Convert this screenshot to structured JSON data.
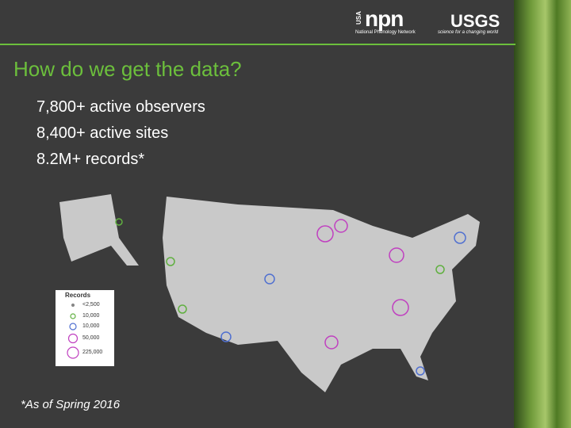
{
  "header": {
    "usa": "USA",
    "npn": "npn",
    "npn_name": "National Phenology Network",
    "usgs": "USGS",
    "usgs_tagline": "science for a changing world"
  },
  "title": "How do we get the data?",
  "bullets": [
    "7,800+ active observers",
    "8,400+ active sites",
    "8.2M+ records*"
  ],
  "legend": {
    "title": "Records",
    "items": [
      "<2,500",
      "10,000",
      "10,000",
      "50,000",
      "225,000"
    ]
  },
  "footnote": "*As of Spring 2016"
}
